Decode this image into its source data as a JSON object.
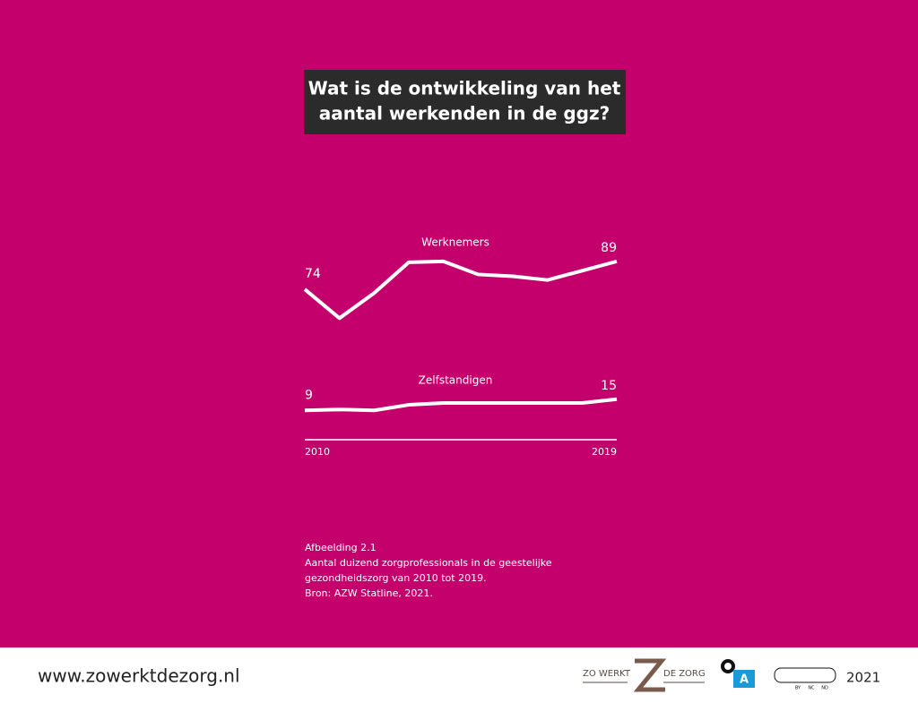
{
  "chart_data": {
    "type": "line",
    "title": [
      "Wat is de ontwikkeling van het",
      "aantal werkenden in de ggz?"
    ],
    "x": [
      2010,
      2011,
      2012,
      2013,
      2014,
      2015,
      2016,
      2017,
      2018,
      2019
    ],
    "xlim": [
      2010,
      2019
    ],
    "xticks": [
      2010,
      2019
    ],
    "ylim": [
      0,
      100
    ],
    "series": [
      {
        "name": "Werknemers",
        "color": "#ffffff",
        "values": [
          74,
          58.5,
          72,
          88.5,
          89,
          82,
          81,
          79,
          84,
          89
        ]
      },
      {
        "name": "Zelfstandigen",
        "color": "#ffffff",
        "values": [
          9,
          9.5,
          9,
          12,
          13,
          13,
          13,
          13,
          13,
          15
        ]
      }
    ],
    "caption": [
      "Afbeelding 2.1",
      "Aantal duizend zorgprofessionals in de geestelijke",
      "gezondheidszorg van 2010 tot 2019.",
      "Bron: AZW Statline, 2021."
    ]
  },
  "footer": {
    "url": "www.zowerktdezorg.nl",
    "logo_left": "ZO WERKT",
    "logo_right": "DE ZORG",
    "logo_a": "A",
    "license": [
      "BY",
      "NC",
      "ND"
    ],
    "year": "2021"
  }
}
